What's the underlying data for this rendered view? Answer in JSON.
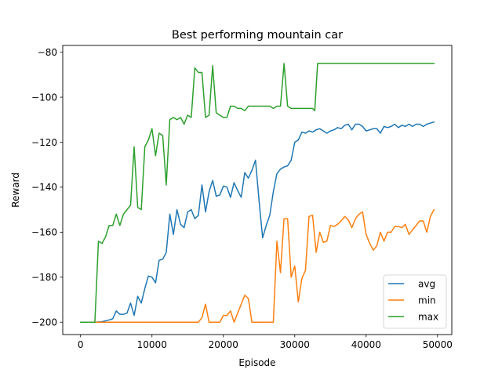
{
  "chart_data": {
    "type": "line",
    "title": "Best performing mountain car",
    "xlabel": "Episode",
    "ylabel": "Reward",
    "xlim": [
      -2500,
      52000
    ],
    "ylim": [
      -205.5,
      -77
    ],
    "xticks": [
      0,
      10000,
      20000,
      30000,
      40000,
      50000
    ],
    "xtick_labels": [
      "0",
      "10000",
      "20000",
      "30000",
      "40000",
      "50000"
    ],
    "yticks": [
      -200,
      -180,
      -160,
      -140,
      -120,
      -100,
      -80
    ],
    "ytick_labels": [
      "−200",
      "−180",
      "−160",
      "−140",
      "−120",
      "−100",
      "−80"
    ],
    "grid": false,
    "legend_position": "lower right",
    "series": [
      {
        "name": "avg",
        "color": "#1f77b4",
        "points": [
          [
            0,
            -200
          ],
          [
            2000,
            -200
          ],
          [
            3000,
            -199.8
          ],
          [
            4000,
            -199
          ],
          [
            4500,
            -198.5
          ],
          [
            5000,
            -195
          ],
          [
            5500,
            -196.5
          ],
          [
            6000,
            -196.5
          ],
          [
            6500,
            -196
          ],
          [
            7000,
            -191.5
          ],
          [
            7500,
            -197
          ],
          [
            8000,
            -188.5
          ],
          [
            8500,
            -191.5
          ],
          [
            9000,
            -185
          ],
          [
            9500,
            -179.5
          ],
          [
            10000,
            -180
          ],
          [
            10500,
            -182.5
          ],
          [
            11000,
            -172.5
          ],
          [
            11500,
            -172
          ],
          [
            12000,
            -169
          ],
          [
            12500,
            -152
          ],
          [
            13000,
            -161
          ],
          [
            13500,
            -150
          ],
          [
            14000,
            -156.5
          ],
          [
            14500,
            -158
          ],
          [
            15000,
            -151
          ],
          [
            15500,
            -150
          ],
          [
            16000,
            -154
          ],
          [
            16500,
            -152.5
          ],
          [
            17000,
            -139
          ],
          [
            17500,
            -151
          ],
          [
            18000,
            -142
          ],
          [
            18500,
            -137
          ],
          [
            19000,
            -144
          ],
          [
            19500,
            -143.5
          ],
          [
            20000,
            -139.5
          ],
          [
            20500,
            -140
          ],
          [
            21000,
            -144.5
          ],
          [
            21500,
            -138
          ],
          [
            22000,
            -141.5
          ],
          [
            22500,
            -144.5
          ],
          [
            23000,
            -133.5
          ],
          [
            23500,
            -136
          ],
          [
            24000,
            -132.5
          ],
          [
            24500,
            -128
          ],
          [
            25000,
            -146
          ],
          [
            25500,
            -162.5
          ],
          [
            26000,
            -157
          ],
          [
            26500,
            -152.5
          ],
          [
            27000,
            -142
          ],
          [
            27500,
            -134
          ],
          [
            28000,
            -132
          ],
          [
            28500,
            -131
          ],
          [
            29000,
            -130.5
          ],
          [
            29500,
            -128
          ],
          [
            30000,
            -120
          ],
          [
            30500,
            -119
          ],
          [
            31000,
            -115.5
          ],
          [
            31500,
            -116
          ],
          [
            32000,
            -115
          ],
          [
            32500,
            -115.5
          ],
          [
            33000,
            -114.5
          ],
          [
            33500,
            -114
          ],
          [
            34000,
            -115
          ],
          [
            34500,
            -116
          ],
          [
            35000,
            -115
          ],
          [
            35500,
            -114.5
          ],
          [
            36000,
            -113.5
          ],
          [
            36500,
            -114
          ],
          [
            37000,
            -112.5
          ],
          [
            37500,
            -112
          ],
          [
            38000,
            -114.5
          ],
          [
            38500,
            -112
          ],
          [
            39000,
            -112
          ],
          [
            39500,
            -113
          ],
          [
            40000,
            -115
          ],
          [
            40500,
            -114.5
          ],
          [
            41000,
            -114
          ],
          [
            41500,
            -114
          ],
          [
            42000,
            -116
          ],
          [
            42500,
            -113
          ],
          [
            43000,
            -113.5
          ],
          [
            43500,
            -113
          ],
          [
            44000,
            -112
          ],
          [
            44500,
            -113.5
          ],
          [
            45000,
            -112.5
          ],
          [
            45500,
            -113
          ],
          [
            46000,
            -112
          ],
          [
            46500,
            -113
          ],
          [
            47000,
            -112
          ],
          [
            47500,
            -112
          ],
          [
            48000,
            -113
          ],
          [
            48500,
            -112
          ],
          [
            49000,
            -111.5
          ],
          [
            49500,
            -111
          ]
        ]
      },
      {
        "name": "min",
        "color": "#ff7f0e",
        "points": [
          [
            0,
            -200
          ],
          [
            16500,
            -200
          ],
          [
            17000,
            -198
          ],
          [
            17500,
            -192
          ],
          [
            18000,
            -200
          ],
          [
            19000,
            -200
          ],
          [
            19500,
            -200
          ],
          [
            20000,
            -197
          ],
          [
            20500,
            -197
          ],
          [
            21000,
            -195
          ],
          [
            21500,
            -200
          ],
          [
            22000,
            -196
          ],
          [
            22500,
            -192
          ],
          [
            23000,
            -188
          ],
          [
            23500,
            -189.5
          ],
          [
            24000,
            -200
          ],
          [
            25000,
            -200
          ],
          [
            27000,
            -200
          ],
          [
            27500,
            -164
          ],
          [
            28000,
            -178
          ],
          [
            28500,
            -154
          ],
          [
            29000,
            -154
          ],
          [
            29500,
            -180
          ],
          [
            30000,
            -175
          ],
          [
            30500,
            -191
          ],
          [
            31000,
            -180.5
          ],
          [
            31500,
            -177
          ],
          [
            32000,
            -153
          ],
          [
            32500,
            -152.5
          ],
          [
            33000,
            -169
          ],
          [
            33500,
            -160
          ],
          [
            34000,
            -164.5
          ],
          [
            34500,
            -164
          ],
          [
            35000,
            -157
          ],
          [
            35500,
            -157.5
          ],
          [
            36000,
            -156.5
          ],
          [
            36500,
            -155
          ],
          [
            37000,
            -153
          ],
          [
            37500,
            -154.5
          ],
          [
            38000,
            -158
          ],
          [
            38500,
            -154
          ],
          [
            39000,
            -152
          ],
          [
            39500,
            -151
          ],
          [
            40000,
            -161
          ],
          [
            40500,
            -165
          ],
          [
            41000,
            -168
          ],
          [
            41500,
            -166
          ],
          [
            42000,
            -160
          ],
          [
            42500,
            -164
          ],
          [
            43000,
            -160
          ],
          [
            43500,
            -160
          ],
          [
            44000,
            -157.5
          ],
          [
            44500,
            -157.5
          ],
          [
            45000,
            -158
          ],
          [
            45500,
            -156.5
          ],
          [
            46000,
            -161
          ],
          [
            46500,
            -159
          ],
          [
            47000,
            -157
          ],
          [
            47500,
            -155
          ],
          [
            48000,
            -155
          ],
          [
            48500,
            -160
          ],
          [
            49000,
            -153
          ],
          [
            49500,
            -150
          ]
        ]
      },
      {
        "name": "max",
        "color": "#2ca02c",
        "points": [
          [
            0,
            -200
          ],
          [
            2000,
            -200
          ],
          [
            2500,
            -164
          ],
          [
            3000,
            -165
          ],
          [
            3500,
            -162
          ],
          [
            4000,
            -157
          ],
          [
            4500,
            -157
          ],
          [
            5000,
            -152
          ],
          [
            5500,
            -157
          ],
          [
            6000,
            -152
          ],
          [
            6500,
            -150
          ],
          [
            7000,
            -148
          ],
          [
            7500,
            -122
          ],
          [
            8000,
            -149
          ],
          [
            8500,
            -150
          ],
          [
            9000,
            -122
          ],
          [
            9500,
            -119
          ],
          [
            10000,
            -114
          ],
          [
            10500,
            -126
          ],
          [
            11000,
            -116
          ],
          [
            11500,
            -117
          ],
          [
            12000,
            -139
          ],
          [
            12500,
            -110
          ],
          [
            13000,
            -109
          ],
          [
            13500,
            -110
          ],
          [
            14000,
            -109
          ],
          [
            14500,
            -112
          ],
          [
            15000,
            -108
          ],
          [
            15500,
            -109
          ],
          [
            16000,
            -87
          ],
          [
            16500,
            -89
          ],
          [
            17000,
            -89
          ],
          [
            17500,
            -109
          ],
          [
            18000,
            -108
          ],
          [
            18500,
            -86
          ],
          [
            19000,
            -107
          ],
          [
            19500,
            -108
          ],
          [
            20000,
            -109
          ],
          [
            20500,
            -109
          ],
          [
            21000,
            -104
          ],
          [
            21500,
            -104
          ],
          [
            22000,
            -105
          ],
          [
            22500,
            -105
          ],
          [
            23000,
            -106
          ],
          [
            23500,
            -104
          ],
          [
            24000,
            -104
          ],
          [
            26000,
            -104
          ],
          [
            26500,
            -104
          ],
          [
            27000,
            -105
          ],
          [
            27500,
            -104
          ],
          [
            28000,
            -104
          ],
          [
            28500,
            -85
          ],
          [
            29000,
            -104
          ],
          [
            29500,
            -105
          ],
          [
            30000,
            -105
          ],
          [
            32500,
            -105
          ],
          [
            32800,
            -106
          ],
          [
            33200,
            -85
          ],
          [
            49500,
            -85
          ]
        ]
      }
    ]
  }
}
